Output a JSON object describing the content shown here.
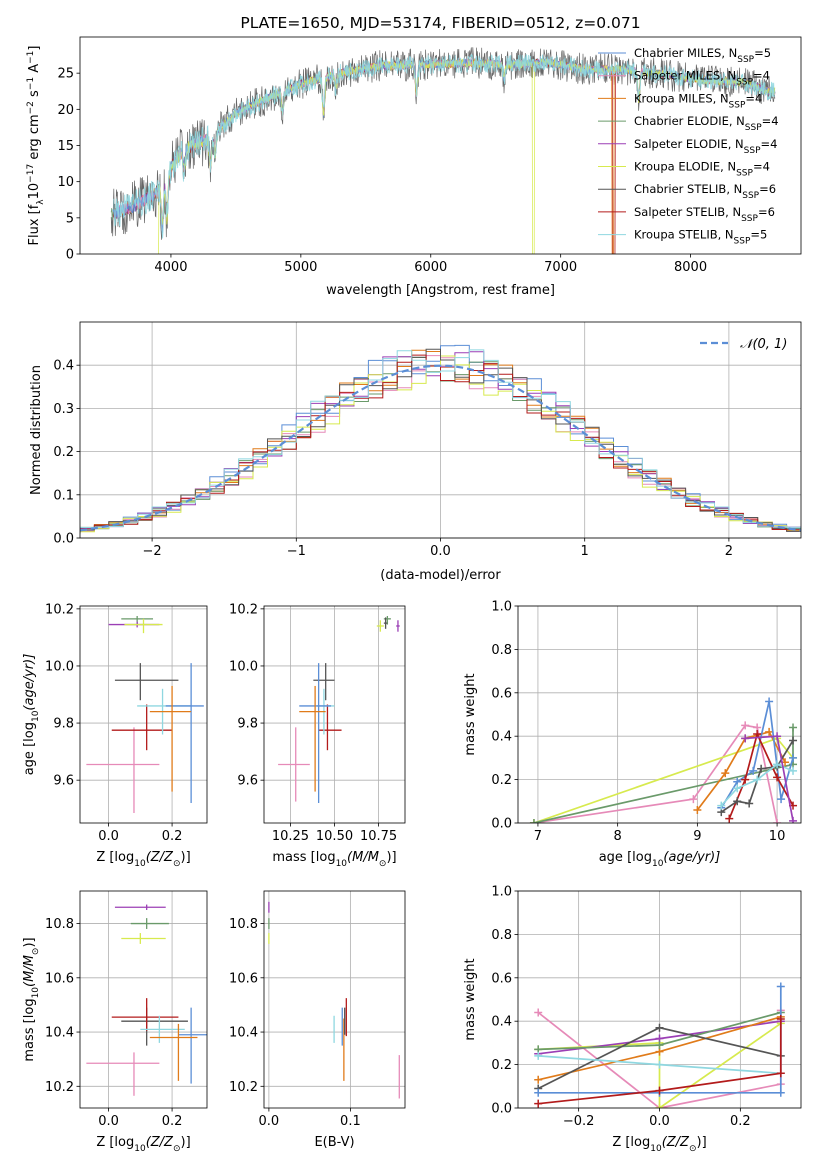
{
  "colors": {
    "chabrier_miles": "#5b8ed6",
    "salpeter_miles": "#e68ab8",
    "kroupa_miles": "#e07b1a",
    "chabrier_elodie": "#6a9a6a",
    "salpeter_elodie": "#9b3fb5",
    "kroupa_elodie": "#d7ea4e",
    "chabrier_stelib": "#555555",
    "salpeter_stelib": "#b31b1b",
    "kroupa_stelib": "#8fd7e0"
  },
  "chart_data": [
    {
      "id": "spectrum",
      "type": "line",
      "title": "PLATE=1650, MJD=53174, FIBERID=0512, z=0.071",
      "xlabel": "wavelength [Angstrom, rest frame]",
      "ylabel_parts": [
        "Flux [f",
        "λ",
        "10",
        "−17",
        " erg cm",
        "−2",
        " s",
        "−1",
        " A",
        "−1",
        "]"
      ],
      "xlim": [
        3300,
        8850
      ],
      "ylim": [
        0,
        30
      ],
      "xticks": [
        4000,
        5000,
        6000,
        7000,
        8000
      ],
      "yticks": [
        0,
        5,
        10,
        15,
        20,
        25
      ],
      "legend": [
        {
          "base": "Chabrier MILES, N",
          "sub": "SSP",
          "tail": "=5",
          "color": "chabrier_miles"
        },
        {
          "base": "Salpeter MILES, N",
          "sub": "SSP",
          "tail": "=4",
          "color": "salpeter_miles"
        },
        {
          "base": "Kroupa MILES, N",
          "sub": "SSP",
          "tail": "=4",
          "color": "kroupa_miles"
        },
        {
          "base": "Chabrier ELODIE, N",
          "sub": "SSP",
          "tail": "=4",
          "color": "chabrier_elodie"
        },
        {
          "base": "Salpeter ELODIE, N",
          "sub": "SSP",
          "tail": "=4",
          "color": "salpeter_elodie"
        },
        {
          "base": "Kroupa ELODIE, N",
          "sub": "SSP",
          "tail": "=4",
          "color": "kroupa_elodie"
        },
        {
          "base": "Chabrier STELIB, N",
          "sub": "SSP",
          "tail": "=6",
          "color": "chabrier_stelib"
        },
        {
          "base": "Salpeter STELIB, N",
          "sub": "SSP",
          "tail": "=6",
          "color": "salpeter_stelib"
        },
        {
          "base": "Kroupa STELIB, N",
          "sub": "SSP",
          "tail": "=5",
          "color": "kroupa_stelib"
        }
      ],
      "continuum_knots": {
        "x": [
          3550,
          3700,
          3900,
          4000,
          4100,
          4300,
          4500,
          4800,
          5000,
          5300,
          5600,
          6000,
          6300,
          6600,
          6900,
          7200,
          7500,
          7800,
          8100,
          8400,
          8600
        ],
        "y": [
          5.5,
          6.5,
          8.5,
          12,
          14.5,
          16,
          19.5,
          22,
          23.5,
          25,
          26,
          26.2,
          26.4,
          26.2,
          26.5,
          25.5,
          25.5,
          24.8,
          24,
          23.8,
          22.5
        ]
      }
    },
    {
      "id": "residuals",
      "type": "step-histogram",
      "xlabel": "(data-model)/error",
      "ylabel": "Normed distribution",
      "xlim": [
        -2.5,
        2.5
      ],
      "ylim": [
        0,
        0.5
      ],
      "xticks": [
        -2,
        -1,
        0,
        1,
        2
      ],
      "yticks": [
        0.0,
        0.1,
        0.2,
        0.3,
        0.4
      ],
      "bin_width": 0.1,
      "grid": true,
      "reference_label": "𝒩(0, 1)",
      "reference_color": "#5b8ed6",
      "legend_position": "top-right",
      "series_amplitude": [
        1.05,
        0.98,
        1.02,
        1.0,
        1.03,
        0.97,
        1.01,
        0.99,
        1.04
      ],
      "series_phase": [
        0.3,
        1.7,
        2.9,
        4.1,
        5.3,
        0.9,
        2.3,
        3.6,
        4.8
      ]
    },
    {
      "id": "age_vs_Z",
      "type": "errorbar",
      "xlabel": "Z [log",
      "xlabel_sub": "10",
      "xlabel_math": "(Z/Z",
      "xlabel_end": ")]",
      "ylabel": "age  [log",
      "ylabel_sub": "10",
      "ylabel_math": "(age/yr)]",
      "xlim": [
        -0.09,
        0.31
      ],
      "ylim": [
        9.45,
        10.21
      ],
      "xticks": [
        0.0,
        0.2
      ],
      "yticks": [
        9.6,
        9.8,
        10.0,
        10.2
      ],
      "points": [
        {
          "c": "salpeter_miles",
          "x": 0.08,
          "y": 9.655,
          "xerr": [
            0.15,
            0.08
          ],
          "yerr": [
            0.17,
            0.13
          ]
        },
        {
          "c": "chabrier_stelib",
          "x": 0.1,
          "y": 9.95,
          "xerr": [
            0.08,
            0.12
          ],
          "yerr": [
            0.07,
            0.06
          ]
        },
        {
          "c": "salpeter_stelib",
          "x": 0.12,
          "y": 9.775,
          "xerr": [
            0.11,
            0.08
          ],
          "yerr": [
            0.07,
            0.09
          ]
        },
        {
          "c": "kroupa_stelib",
          "x": 0.17,
          "y": 9.86,
          "xerr": [
            0.08,
            0.09
          ],
          "yerr": [
            0.1,
            0.06
          ]
        },
        {
          "c": "chabrier_miles",
          "x": 0.26,
          "y": 9.86,
          "xerr": [
            0.08,
            0.04
          ],
          "yerr": [
            0.34,
            0.15
          ]
        },
        {
          "c": "kroupa_miles",
          "x": 0.2,
          "y": 9.84,
          "xerr": [
            0.07,
            0.06
          ],
          "yerr": [
            0.28,
            0.09
          ]
        },
        {
          "c": "chabrier_elodie",
          "x": 0.09,
          "y": 10.165,
          "xerr": [
            0.05,
            0.05
          ],
          "yerr": [
            0.02,
            0.01
          ]
        },
        {
          "c": "salpeter_elodie",
          "x": 0.09,
          "y": 10.145,
          "xerr": [
            0.09,
            0.07
          ],
          "yerr": [
            0.01,
            0.01
          ]
        },
        {
          "c": "kroupa_elodie",
          "x": 0.11,
          "y": 10.145,
          "xerr": [
            0.06,
            0.06
          ],
          "yerr": [
            0.03,
            0.02
          ]
        }
      ]
    },
    {
      "id": "age_vs_mass",
      "type": "errorbar",
      "xlabel": "mass [log",
      "xlabel_sub": "10",
      "xlabel_math": "(M/M",
      "xlabel_end": ")]",
      "xlim": [
        10.1,
        10.9
      ],
      "ylim": [
        9.45,
        10.21
      ],
      "xticks": [
        10.25,
        10.5,
        10.75
      ],
      "yticks": [
        9.6,
        9.8,
        10.0,
        10.2
      ],
      "points": [
        {
          "c": "salpeter_miles",
          "x": 10.28,
          "y": 9.655,
          "xerr": [
            0.1,
            0.08
          ],
          "yerr": [
            0.13,
            0.13
          ]
        },
        {
          "c": "chabrier_stelib",
          "x": 10.45,
          "y": 9.95,
          "xerr": [
            0.07,
            0.05
          ],
          "yerr": [
            0.07,
            0.06
          ]
        },
        {
          "c": "salpeter_stelib",
          "x": 10.46,
          "y": 9.775,
          "xerr": [
            0.05,
            0.08
          ],
          "yerr": [
            0.07,
            0.09
          ]
        },
        {
          "c": "kroupa_stelib",
          "x": 10.44,
          "y": 9.86,
          "xerr": [
            0.04,
            0.06
          ],
          "yerr": [
            0.1,
            0.06
          ]
        },
        {
          "c": "chabrier_miles",
          "x": 10.41,
          "y": 9.86,
          "xerr": [
            0.11,
            0.07
          ],
          "yerr": [
            0.34,
            0.15
          ]
        },
        {
          "c": "kroupa_miles",
          "x": 10.39,
          "y": 9.84,
          "xerr": [
            0.09,
            0.06
          ],
          "yerr": [
            0.28,
            0.09
          ]
        },
        {
          "c": "chabrier_elodie",
          "x": 10.8,
          "y": 10.165,
          "xerr": [
            0.02,
            0.02
          ],
          "yerr": [
            0.02,
            0.01
          ]
        },
        {
          "c": "salpeter_elodie",
          "x": 10.86,
          "y": 10.14,
          "xerr": [
            0.01,
            0.01
          ],
          "yerr": [
            0.02,
            0.02
          ]
        },
        {
          "c": "kroupa_elodie",
          "x": 10.76,
          "y": 10.14,
          "xerr": [
            0.02,
            0.02
          ],
          "yerr": [
            0.02,
            0.02
          ]
        },
        {
          "c": "chabrier_stelib",
          "x": 10.79,
          "y": 10.15,
          "xerr": [
            0.01,
            0.01
          ],
          "yerr": [
            0.02,
            0.02
          ]
        }
      ]
    },
    {
      "id": "weight_vs_age",
      "type": "line",
      "xlabel": "age  [log",
      "xlabel_sub": "10",
      "xlabel_math": "(age/yr)]",
      "ylabel": "mass weight",
      "xlim": [
        6.75,
        10.3
      ],
      "ylim": [
        0,
        1.0
      ],
      "xticks": [
        7,
        8,
        9,
        10
      ],
      "yticks": [
        0.0,
        0.2,
        0.4,
        0.6,
        0.8,
        1.0
      ],
      "grid": true,
      "series": [
        {
          "c": "salpeter_miles",
          "x": [
            6.95,
            8.95,
            9.6,
            9.75,
            10.0
          ],
          "y": [
            0.0,
            0.11,
            0.45,
            0.44,
            0.0
          ]
        },
        {
          "c": "kroupa_elodie",
          "x": [
            6.95,
            10.0,
            10.2
          ],
          "y": [
            0.0,
            0.39,
            0.3
          ]
        },
        {
          "c": "chabrier_elodie",
          "x": [
            6.95,
            10.2,
            10.2
          ],
          "y": [
            0.0,
            0.27,
            0.44
          ]
        },
        {
          "c": "kroupa_miles",
          "x": [
            9.0,
            9.35,
            9.6,
            9.9,
            10.1
          ],
          "y": [
            0.06,
            0.23,
            0.39,
            0.42,
            0.28
          ]
        },
        {
          "c": "chabrier_miles",
          "x": [
            9.3,
            9.5,
            9.7,
            9.9,
            10.05,
            10.2
          ],
          "y": [
            0.07,
            0.19,
            0.24,
            0.56,
            0.11,
            0.3
          ]
        },
        {
          "c": "salpeter_stelib",
          "x": [
            9.4,
            9.6,
            9.75,
            10.0,
            10.2
          ],
          "y": [
            0.02,
            0.2,
            0.41,
            0.21,
            0.08
          ]
        },
        {
          "c": "chabrier_stelib",
          "x": [
            9.3,
            9.5,
            9.65,
            9.8,
            10.0,
            10.2
          ],
          "y": [
            0.05,
            0.1,
            0.09,
            0.25,
            0.26,
            0.38
          ]
        },
        {
          "c": "kroupa_stelib",
          "x": [
            9.3,
            9.5,
            9.75,
            10.0,
            10.2
          ],
          "y": [
            0.08,
            0.16,
            0.2,
            0.27,
            0.24
          ]
        },
        {
          "c": "salpeter_elodie",
          "x": [
            9.6,
            10.0,
            10.2
          ],
          "y": [
            0.39,
            0.4,
            0.01
          ]
        }
      ]
    },
    {
      "id": "mass_vs_Z",
      "type": "errorbar",
      "xlabel": "Z [log",
      "xlabel_sub": "10",
      "xlabel_math": "(Z/Z",
      "xlabel_end": ")]",
      "ylabel": "mass [log",
      "ylabel_sub": "10",
      "ylabel_math": "(M/M",
      "ylabel_end": ")]",
      "xlim": [
        -0.09,
        0.31
      ],
      "ylim": [
        10.12,
        10.92
      ],
      "xticks": [
        0.0,
        0.2
      ],
      "yticks": [
        10.2,
        10.4,
        10.6,
        10.8
      ],
      "points": [
        {
          "c": "salpeter_miles",
          "x": 0.08,
          "y": 10.285,
          "xerr": [
            0.15,
            0.08
          ],
          "yerr": [
            0.12,
            0.04
          ]
        },
        {
          "c": "chabrier_stelib",
          "x": 0.12,
          "y": 10.44,
          "xerr": [
            0.08,
            0.13
          ],
          "yerr": [
            0.09,
            0.05
          ]
        },
        {
          "c": "salpeter_stelib",
          "x": 0.12,
          "y": 10.455,
          "xerr": [
            0.11,
            0.1
          ],
          "yerr": [
            0.05,
            0.07
          ]
        },
        {
          "c": "kroupa_stelib",
          "x": 0.16,
          "y": 10.41,
          "xerr": [
            0.06,
            0.08
          ],
          "yerr": [
            0.05,
            0.05
          ]
        },
        {
          "c": "chabrier_miles",
          "x": 0.26,
          "y": 10.39,
          "xerr": [
            0.04,
            0.05
          ],
          "yerr": [
            0.18,
            0.1
          ]
        },
        {
          "c": "kroupa_miles",
          "x": 0.22,
          "y": 10.38,
          "xerr": [
            0.09,
            0.06
          ],
          "yerr": [
            0.16,
            0.05
          ]
        },
        {
          "c": "chabrier_elodie",
          "x": 0.12,
          "y": 10.8,
          "xerr": [
            0.05,
            0.07
          ],
          "yerr": [
            0.02,
            0.02
          ]
        },
        {
          "c": "salpeter_elodie",
          "x": 0.12,
          "y": 10.86,
          "xerr": [
            0.1,
            0.06
          ],
          "yerr": [
            0.01,
            0.01
          ]
        },
        {
          "c": "kroupa_elodie",
          "x": 0.1,
          "y": 10.745,
          "xerr": [
            0.06,
            0.08
          ],
          "yerr": [
            0.02,
            0.02
          ]
        }
      ]
    },
    {
      "id": "mass_vs_ebv",
      "type": "errorbar",
      "xlabel": "E(B-V)",
      "xlim": [
        -0.006,
        0.167
      ],
      "ylim": [
        10.12,
        10.92
      ],
      "xticks": [
        0.0,
        0.1
      ],
      "yticks": [
        10.2,
        10.4,
        10.6,
        10.8
      ],
      "points": [
        {
          "c": "kroupa_stelib",
          "x": 0.08,
          "y": 10.41,
          "xerr": [
            0,
            0
          ],
          "yerr": [
            0.05,
            0.05
          ]
        },
        {
          "c": "chabrier_miles",
          "x": 0.09,
          "y": 10.42,
          "xerr": [
            0,
            0
          ],
          "yerr": [
            0.07,
            0.07
          ]
        },
        {
          "c": "kroupa_miles",
          "x": 0.092,
          "y": 10.32,
          "xerr": [
            0,
            0
          ],
          "yerr": [
            0.1,
            0.13
          ]
        },
        {
          "c": "chabrier_stelib",
          "x": 0.093,
          "y": 10.44,
          "xerr": [
            0,
            0
          ],
          "yerr": [
            0.05,
            0.05
          ]
        },
        {
          "c": "salpeter_stelib",
          "x": 0.095,
          "y": 10.455,
          "xerr": [
            0,
            0
          ],
          "yerr": [
            0.07,
            0.07
          ]
        },
        {
          "c": "salpeter_miles",
          "x": 0.16,
          "y": 10.235,
          "xerr": [
            0,
            0
          ],
          "yerr": [
            0.08,
            0.08
          ]
        },
        {
          "c": "salpeter_elodie",
          "x": 0.0,
          "y": 10.86,
          "xerr": [
            0,
            0
          ],
          "yerr": [
            0.02,
            0.02
          ]
        },
        {
          "c": "chabrier_elodie",
          "x": 0.0,
          "y": 10.8,
          "xerr": [
            0,
            0
          ],
          "yerr": [
            0.02,
            0.02
          ]
        },
        {
          "c": "kroupa_elodie",
          "x": 0.0,
          "y": 10.745,
          "xerr": [
            0,
            0
          ],
          "yerr": [
            0.02,
            0.02
          ]
        }
      ]
    },
    {
      "id": "weight_vs_Z",
      "type": "line",
      "xlabel": "Z [log",
      "xlabel_sub": "10",
      "xlabel_math": "(Z/Z",
      "xlabel_end": ")]",
      "ylabel": "mass weight",
      "xlim": [
        -0.35,
        0.35
      ],
      "ylim": [
        0,
        1.0
      ],
      "xticks": [
        -0.2,
        0.0,
        0.2
      ],
      "yticks": [
        0.0,
        0.2,
        0.4,
        0.6,
        0.8,
        1.0
      ],
      "grid": true,
      "series": [
        {
          "c": "salpeter_miles",
          "x": [
            -0.3,
            0.0,
            0.3,
            0.3
          ],
          "y": [
            0.44,
            0.0,
            0.11,
            0.45
          ]
        },
        {
          "c": "kroupa_elodie",
          "x": [
            -0.3,
            0.0,
            0.0,
            0.3
          ],
          "y": [
            0.27,
            0.3,
            0.0,
            0.39
          ]
        },
        {
          "c": "salpeter_elodie",
          "x": [
            -0.3,
            0.0,
            0.3
          ],
          "y": [
            0.25,
            0.32,
            0.4
          ]
        },
        {
          "c": "kroupa_miles",
          "x": [
            -0.3,
            0.0,
            0.3
          ],
          "y": [
            0.13,
            0.26,
            0.42
          ]
        },
        {
          "c": "chabrier_elodie",
          "x": [
            -0.3,
            0.0,
            0.3
          ],
          "y": [
            0.27,
            0.29,
            0.44
          ]
        },
        {
          "c": "chabrier_stelib",
          "x": [
            -0.3,
            0.0,
            0.3
          ],
          "y": [
            0.09,
            0.37,
            0.24
          ]
        },
        {
          "c": "kroupa_stelib",
          "x": [
            -0.3,
            0.0,
            0.3
          ],
          "y": [
            0.24,
            0.2,
            0.16
          ]
        },
        {
          "c": "chabrier_miles",
          "x": [
            -0.3,
            0.0,
            0.3,
            0.3
          ],
          "y": [
            0.07,
            0.07,
            0.07,
            0.56
          ]
        },
        {
          "c": "salpeter_stelib",
          "x": [
            -0.3,
            0.0,
            0.3,
            0.3
          ],
          "y": [
            0.02,
            0.08,
            0.16,
            0.41
          ]
        }
      ]
    }
  ]
}
